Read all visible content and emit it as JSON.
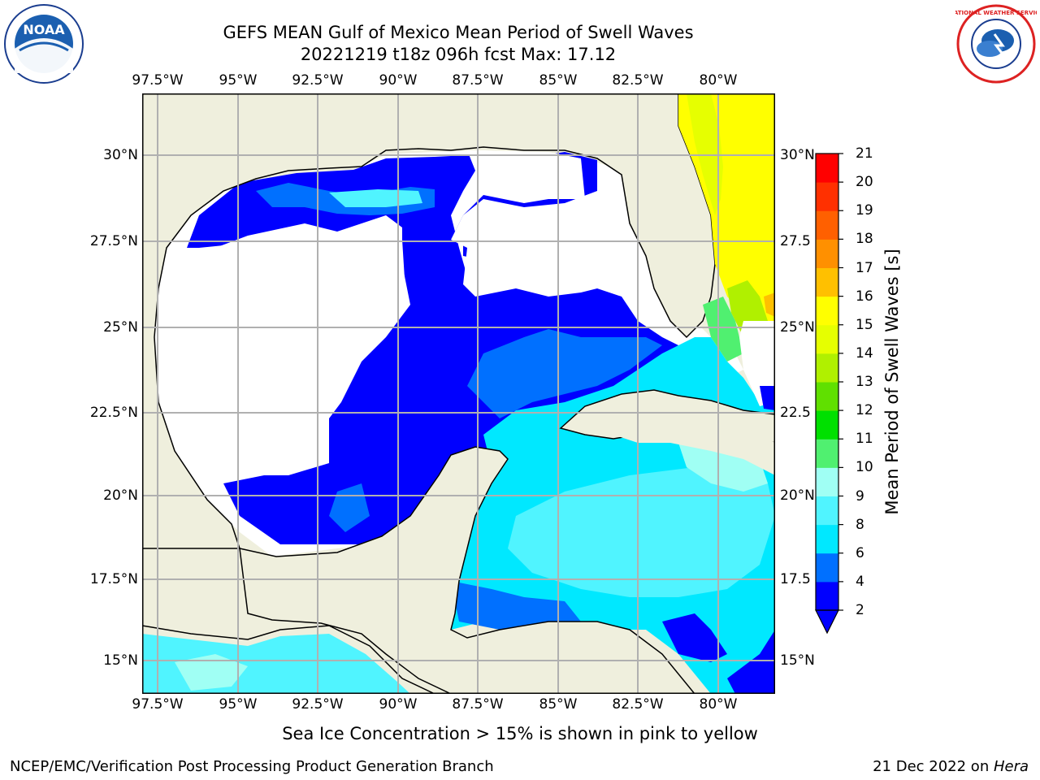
{
  "title": {
    "line1": "GEFS MEAN Gulf of Mexico Mean Period of Swell Waves",
    "line2": "20221219 t18z 096h fcst   Max: 17.12"
  },
  "map": {
    "lon_labels": [
      "97.5°W",
      "95°W",
      "92.5°W",
      "90°W",
      "87.5°W",
      "85°W",
      "82.5°W",
      "80°W"
    ],
    "lat_labels_left": [
      "30°N",
      "27.5°N",
      "25°N",
      "22.5°N",
      "20°N",
      "17.5°N",
      "15°N"
    ],
    "lat_labels_right": [
      "30°N",
      "27.5",
      "25°N",
      "22.5",
      "20°N",
      "17.5",
      "15°N"
    ],
    "colors": {
      "land": "#efefdd",
      "ocean_none": "#ffffff",
      "coast": "#000000",
      "grid": "#b0b0b0"
    }
  },
  "colorbar": {
    "label": "Mean Period of Swell Waves [s]",
    "ticks": [
      "2",
      "4",
      "6",
      "8",
      "9",
      "10",
      "11",
      "12",
      "13",
      "14",
      "15",
      "16",
      "17",
      "18",
      "19",
      "20",
      "21"
    ],
    "colors": [
      "#0000ff",
      "#0070ff",
      "#00e8ff",
      "#50f4ff",
      "#a0fff4",
      "#50f070",
      "#00e000",
      "#60e000",
      "#b0f000",
      "#e6ff00",
      "#ffff00",
      "#ffc000",
      "#ff9000",
      "#ff6000",
      "#ff3000",
      "#ff0000"
    ]
  },
  "note": "Sea Ice Concentration > 15% is shown in pink to yellow",
  "footer": {
    "left": "NCEP/EMC/Verification Post Processing Product Generation Branch",
    "right_prefix": "21 Dec 2022 on ",
    "right_host": "Hera"
  },
  "logos": {
    "noaa": "NOAA",
    "nws": "NATIONAL WEATHER SERVICE"
  }
}
